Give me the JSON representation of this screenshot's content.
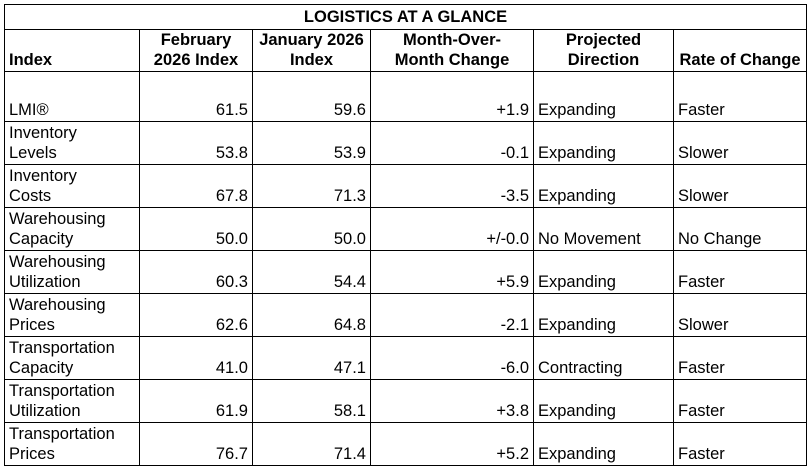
{
  "table": {
    "title": "LOGISTICS AT A GLANCE",
    "header": [
      "Index",
      "February 2026 Index",
      "January 2026 Index",
      "Month-Over-Month Change",
      "Projected Direction",
      "Rate of Change"
    ],
    "rows": [
      [
        "LMI®",
        "61.5",
        "59.6",
        "+1.9",
        "Expanding",
        "Faster"
      ],
      [
        "Inventory Levels",
        "53.8",
        "53.9",
        "-0.1",
        "Expanding",
        "Slower"
      ],
      [
        "Inventory Costs",
        "67.8",
        "71.3",
        "-3.5",
        "Expanding",
        "Slower"
      ],
      [
        "Warehousing Capacity",
        "50.0",
        "50.0",
        "+/-0.0",
        "No Movement",
        "No Change"
      ],
      [
        "Warehousing Utilization",
        "60.3",
        "54.4",
        "+5.9",
        "Expanding",
        "Faster"
      ],
      [
        "Warehousing Prices",
        "62.6",
        "64.8",
        "-2.1",
        "Expanding",
        "Slower"
      ],
      [
        "Transportation Capacity",
        "41.0",
        "47.1",
        "-6.0",
        "Contracting",
        "Faster"
      ],
      [
        "Transportation Utilization",
        "61.9",
        "58.1",
        "+3.8",
        "Expanding",
        "Faster"
      ],
      [
        "Transportation Prices",
        "76.7",
        "71.4",
        "+5.2",
        "Expanding",
        "Faster"
      ]
    ]
  }
}
